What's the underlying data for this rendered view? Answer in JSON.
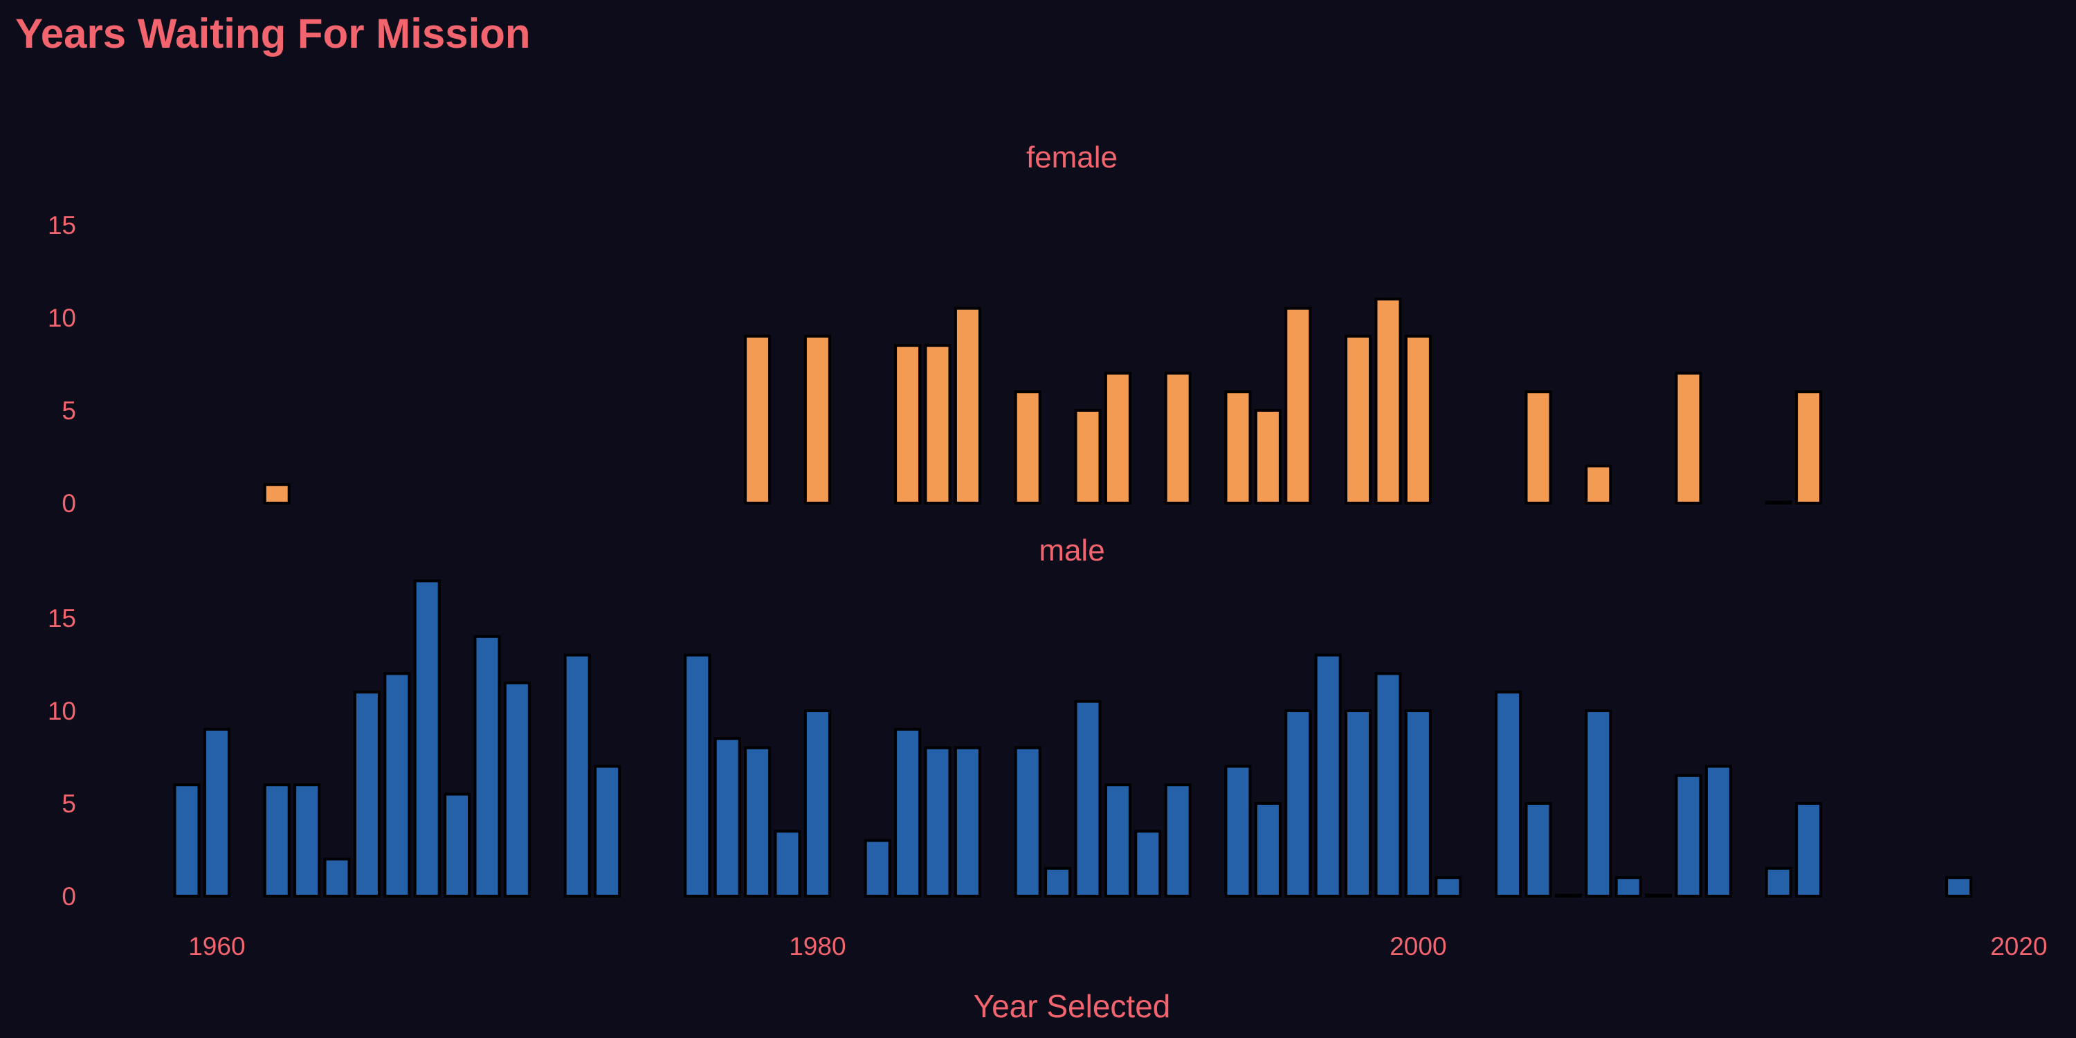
{
  "chart_data": {
    "type": "bar",
    "title": "Years Waiting For Mission",
    "xlabel": "Year Selected",
    "ylabel": "",
    "xlim": [
      1958,
      2020
    ],
    "xticks": [
      1960,
      1980,
      2000,
      2020
    ],
    "grid": false,
    "legend": "none",
    "facets": [
      {
        "name": "female",
        "color": "#f39b52",
        "ylim": [
          0,
          16
        ],
        "yticks": [
          0,
          5,
          10,
          15
        ],
        "x": [
          1962,
          1978,
          1980,
          1983,
          1984,
          1985,
          1987,
          1989,
          1990,
          1992,
          1994,
          1995,
          1996,
          1998,
          1999,
          2000,
          2004,
          2006,
          2009,
          2012,
          2013
        ],
        "values": [
          1,
          9,
          9,
          8.5,
          8.5,
          10.5,
          6,
          5,
          7,
          7,
          6,
          5,
          10.5,
          9,
          11,
          9,
          6,
          2,
          7,
          0,
          6
        ]
      },
      {
        "name": "male",
        "color": "#2461a8",
        "ylim": [
          0,
          17
        ],
        "yticks": [
          0,
          5,
          10,
          15
        ],
        "x": [
          1959,
          1960,
          1962,
          1963,
          1964,
          1965,
          1966,
          1967,
          1968,
          1969,
          1970,
          1972,
          1973,
          1976,
          1977,
          1978,
          1979,
          1980,
          1982,
          1983,
          1984,
          1985,
          1987,
          1988,
          1989,
          1990,
          1991,
          1992,
          1994,
          1995,
          1996,
          1997,
          1998,
          1999,
          2000,
          2001,
          2003,
          2004,
          2005,
          2006,
          2007,
          2008,
          2009,
          2010,
          2012,
          2013,
          2018
        ],
        "values": [
          6,
          9,
          6,
          6,
          2,
          11,
          12,
          17,
          5.5,
          14,
          11.5,
          13,
          7,
          13,
          8.5,
          8,
          3.5,
          10,
          3,
          9,
          8,
          8,
          8,
          1.5,
          10.5,
          6,
          3.5,
          6,
          7,
          5,
          10,
          13,
          10,
          12,
          10,
          1,
          11,
          5,
          0,
          10,
          1,
          0,
          6.5,
          7,
          1.5,
          5,
          1
        ]
      }
    ]
  }
}
